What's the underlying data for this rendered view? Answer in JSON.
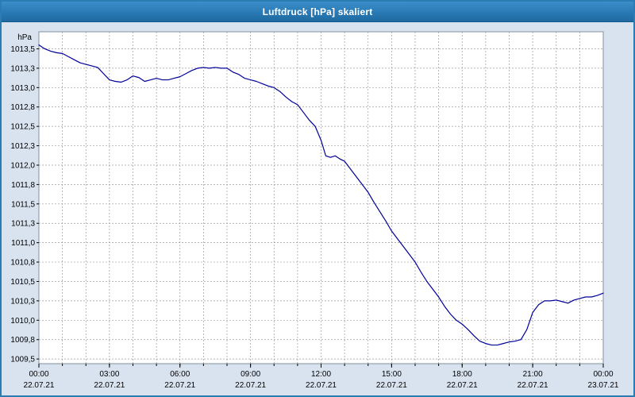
{
  "window": {
    "title": "Luftdruck [hPa] skaliert",
    "title_bar_color": "#2a7ab5",
    "background_color": "#d9e3f0",
    "border_color": "#2b7cb3"
  },
  "chart_data": {
    "type": "line",
    "title": "Luftdruck [hPa] skaliert",
    "ylabel": "hPa",
    "xlabel": "",
    "line_color": "#000099",
    "grid": true,
    "grid_color": "#9a9a9a",
    "plot_background": "#ffffff",
    "legend_position": "none",
    "x_axis": {
      "unit": "hours",
      "range_hours": [
        0,
        24
      ],
      "minor_tick_every_hours": 1,
      "major_ticks": [
        {
          "hour": 0,
          "time": "00:00",
          "date": "22.07.21"
        },
        {
          "hour": 3,
          "time": "03:00",
          "date": "22.07.21"
        },
        {
          "hour": 6,
          "time": "06:00",
          "date": "22.07.21"
        },
        {
          "hour": 9,
          "time": "09:00",
          "date": "22.07.21"
        },
        {
          "hour": 12,
          "time": "12:00",
          "date": "22.07.21"
        },
        {
          "hour": 15,
          "time": "15:00",
          "date": "22.07.21"
        },
        {
          "hour": 18,
          "time": "18:00",
          "date": "22.07.21"
        },
        {
          "hour": 21,
          "time": "21:00",
          "date": "22.07.21"
        },
        {
          "hour": 24,
          "time": "00:00",
          "date": "23.07.21"
        }
      ]
    },
    "y_axis": {
      "min": 1009.44,
      "max": 1013.72,
      "unit_label": "hPa",
      "ticks": [
        {
          "value": 1013.5,
          "label": "1013,5"
        },
        {
          "value": 1013.25,
          "label": "1013,3"
        },
        {
          "value": 1013.0,
          "label": "1013,0"
        },
        {
          "value": 1012.75,
          "label": "1012,8"
        },
        {
          "value": 1012.5,
          "label": "1012,5"
        },
        {
          "value": 1012.25,
          "label": "1012,3"
        },
        {
          "value": 1012.0,
          "label": "1012,0"
        },
        {
          "value": 1011.75,
          "label": "1011,8"
        },
        {
          "value": 1011.5,
          "label": "1011,5"
        },
        {
          "value": 1011.25,
          "label": "1011,3"
        },
        {
          "value": 1011.0,
          "label": "1011,0"
        },
        {
          "value": 1010.75,
          "label": "1010,8"
        },
        {
          "value": 1010.5,
          "label": "1010,5"
        },
        {
          "value": 1010.25,
          "label": "1010,3"
        },
        {
          "value": 1010.0,
          "label": "1010,0"
        },
        {
          "value": 1009.75,
          "label": "1009,8"
        },
        {
          "value": 1009.5,
          "label": "1009,5"
        }
      ]
    },
    "series": [
      {
        "name": "Luftdruck",
        "points": [
          [
            0,
            1013.55
          ],
          [
            0.25,
            1013.5
          ],
          [
            0.5,
            1013.47
          ],
          [
            0.75,
            1013.45
          ],
          [
            1,
            1013.44
          ],
          [
            1.25,
            1013.4
          ],
          [
            1.5,
            1013.36
          ],
          [
            1.75,
            1013.32
          ],
          [
            2,
            1013.3
          ],
          [
            2.5,
            1013.26
          ],
          [
            2.75,
            1013.18
          ],
          [
            3,
            1013.1
          ],
          [
            3.25,
            1013.08
          ],
          [
            3.5,
            1013.07
          ],
          [
            3.75,
            1013.1
          ],
          [
            4,
            1013.15
          ],
          [
            4.25,
            1013.13
          ],
          [
            4.5,
            1013.08
          ],
          [
            4.75,
            1013.1
          ],
          [
            5,
            1013.12
          ],
          [
            5.25,
            1013.1
          ],
          [
            5.5,
            1013.1
          ],
          [
            5.75,
            1013.12
          ],
          [
            6,
            1013.14
          ],
          [
            6.25,
            1013.18
          ],
          [
            6.5,
            1013.22
          ],
          [
            6.75,
            1013.25
          ],
          [
            7,
            1013.26
          ],
          [
            7.25,
            1013.25
          ],
          [
            7.5,
            1013.26
          ],
          [
            7.75,
            1013.25
          ],
          [
            8,
            1013.25
          ],
          [
            8.25,
            1013.2
          ],
          [
            8.5,
            1013.17
          ],
          [
            8.75,
            1013.12
          ],
          [
            9,
            1013.1
          ],
          [
            9.25,
            1013.08
          ],
          [
            9.5,
            1013.05
          ],
          [
            9.75,
            1013.02
          ],
          [
            10,
            1013.0
          ],
          [
            10.25,
            1012.95
          ],
          [
            10.5,
            1012.88
          ],
          [
            10.75,
            1012.82
          ],
          [
            11,
            1012.78
          ],
          [
            11.25,
            1012.68
          ],
          [
            11.5,
            1012.58
          ],
          [
            11.75,
            1012.5
          ],
          [
            12,
            1012.32
          ],
          [
            12.2,
            1012.12
          ],
          [
            12.4,
            1012.1
          ],
          [
            12.6,
            1012.12
          ],
          [
            12.8,
            1012.08
          ],
          [
            13,
            1012.05
          ],
          [
            13.25,
            1011.95
          ],
          [
            13.5,
            1011.85
          ],
          [
            13.75,
            1011.75
          ],
          [
            14,
            1011.65
          ],
          [
            14.25,
            1011.52
          ],
          [
            14.5,
            1011.4
          ],
          [
            14.75,
            1011.28
          ],
          [
            15,
            1011.15
          ],
          [
            15.25,
            1011.05
          ],
          [
            15.5,
            1010.95
          ],
          [
            15.75,
            1010.85
          ],
          [
            16,
            1010.75
          ],
          [
            16.25,
            1010.62
          ],
          [
            16.5,
            1010.5
          ],
          [
            16.75,
            1010.4
          ],
          [
            17,
            1010.3
          ],
          [
            17.25,
            1010.18
          ],
          [
            17.5,
            1010.08
          ],
          [
            17.75,
            1010.0
          ],
          [
            18,
            1009.95
          ],
          [
            18.25,
            1009.88
          ],
          [
            18.5,
            1009.8
          ],
          [
            18.75,
            1009.73
          ],
          [
            19,
            1009.7
          ],
          [
            19.25,
            1009.68
          ],
          [
            19.5,
            1009.68
          ],
          [
            19.75,
            1009.7
          ],
          [
            20,
            1009.72
          ],
          [
            20.25,
            1009.73
          ],
          [
            20.5,
            1009.75
          ],
          [
            20.75,
            1009.88
          ],
          [
            21,
            1010.1
          ],
          [
            21.25,
            1010.2
          ],
          [
            21.5,
            1010.25
          ],
          [
            21.75,
            1010.25
          ],
          [
            22,
            1010.26
          ],
          [
            22.25,
            1010.24
          ],
          [
            22.5,
            1010.22
          ],
          [
            22.75,
            1010.26
          ],
          [
            23,
            1010.28
          ],
          [
            23.25,
            1010.3
          ],
          [
            23.5,
            1010.3
          ],
          [
            23.75,
            1010.32
          ],
          [
            24,
            1010.35
          ]
        ]
      }
    ]
  }
}
